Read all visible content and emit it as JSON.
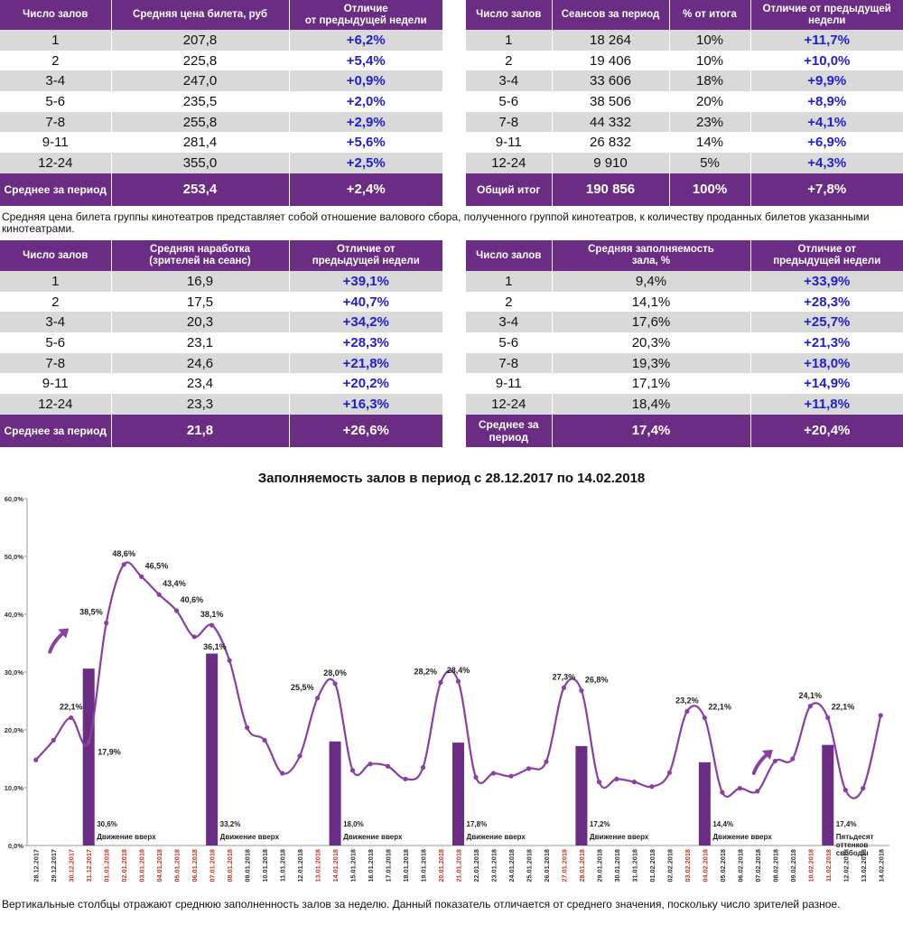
{
  "price_table": {
    "headers": [
      "Число залов",
      "Средняя цена билета, руб",
      "Отличие\nот предыдущей недели"
    ],
    "rows": [
      [
        "1",
        "207,8",
        "+6,2%"
      ],
      [
        "2",
        "225,8",
        "+5,4%"
      ],
      [
        "3-4",
        "247,0",
        "+0,9%"
      ],
      [
        "5-6",
        "235,5",
        "+2,0%"
      ],
      [
        "7-8",
        "255,8",
        "+2,9%"
      ],
      [
        "9-11",
        "281,4",
        "+5,6%"
      ],
      [
        "12-24",
        "355,0",
        "+2,5%"
      ]
    ],
    "total": [
      "Среднее за период",
      "253,4",
      "+2,4%"
    ]
  },
  "sessions_table": {
    "headers": [
      "Число залов",
      "Сеансов за период",
      "% от итога",
      "Отличие от предыдущей недели"
    ],
    "rows": [
      [
        "1",
        "18 264",
        "10%",
        "+11,7%"
      ],
      [
        "2",
        "19 406",
        "10%",
        "+10,0%"
      ],
      [
        "3-4",
        "33 606",
        "18%",
        "+9,9%"
      ],
      [
        "5-6",
        "38 506",
        "20%",
        "+8,9%"
      ],
      [
        "7-8",
        "44 332",
        "23%",
        "+4,1%"
      ],
      [
        "9-11",
        "26 832",
        "14%",
        "+6,9%"
      ],
      [
        "12-24",
        "9 910",
        "5%",
        "+4,3%"
      ]
    ],
    "total": [
      "Общий итог",
      "190 856",
      "100%",
      "+7,8%"
    ]
  },
  "note_price": "Средняя цена билета группы кинотеатров представляет собой отношение валового сбора, полученного группой кинотеатров, к количеству проданных билетов указанными кинотеатрами.",
  "audience_table": {
    "headers": [
      "Число залов",
      "Средняя наработка\n(зрителей на сеанс)",
      "Отличие от\nпредыдущей недели"
    ],
    "rows": [
      [
        "1",
        "16,9",
        "+39,1%"
      ],
      [
        "2",
        "17,5",
        "+40,7%"
      ],
      [
        "3-4",
        "20,3",
        "+34,2%"
      ],
      [
        "5-6",
        "23,1",
        "+28,3%"
      ],
      [
        "7-8",
        "24,6",
        "+21,8%"
      ],
      [
        "9-11",
        "23,4",
        "+20,2%"
      ],
      [
        "12-24",
        "23,3",
        "+16,3%"
      ]
    ],
    "total": [
      "Среднее за период",
      "21,8",
      "+26,6%"
    ]
  },
  "occupancy_table": {
    "headers": [
      "Число залов",
      "Средняя заполняемость\nзала, %",
      "Отличие от\nпредыдущей недели"
    ],
    "rows": [
      [
        "1",
        "9,4%",
        "+33,9%"
      ],
      [
        "2",
        "14,1%",
        "+28,3%"
      ],
      [
        "3-4",
        "17,6%",
        "+25,7%"
      ],
      [
        "5-6",
        "20,3%",
        "+21,3%"
      ],
      [
        "7-8",
        "19,3%",
        "+18,0%"
      ],
      [
        "9-11",
        "17,1%",
        "+14,9%"
      ],
      [
        "12-24",
        "18,4%",
        "+11,8%"
      ]
    ],
    "total": [
      "Среднее за период",
      "17,4%",
      "+20,4%"
    ]
  },
  "note_chart": "Вертикальные столбцы отражают среднюю заполненность залов за неделю. Данный показатель отличается от среднего значения, поскольку число зрителей разное.",
  "colors": {
    "accent": "#6b2d84",
    "positive": "#1f1fd0",
    "band": "#d9d9d9",
    "weekend": "#c0392b"
  },
  "chart_data": {
    "type": "line",
    "title": "Заполняемость залов в период с 28.12.2017 по 14.02.2018",
    "ylim": [
      0,
      60
    ],
    "yticks": [
      "0,0%",
      "10,0%",
      "20,0%",
      "30,0%",
      "40,0%",
      "50,0%",
      "60,0%"
    ],
    "x": [
      "28.12.2017",
      "29.12.2017",
      "30.12.2017",
      "31.12.2017",
      "01.01.2018",
      "02.01.2018",
      "03.01.2018",
      "04.01.2018",
      "05.01.2018",
      "06.01.2018",
      "07.01.2018",
      "08.01.2018",
      "09.01.2018",
      "10.01.2018",
      "11.01.2018",
      "12.01.2018",
      "13.01.2018",
      "14.01.2018",
      "15.01.2018",
      "16.01.2018",
      "17.01.2018",
      "18.01.2018",
      "19.01.2018",
      "20.01.2018",
      "21.01.2018",
      "22.01.2018",
      "23.01.2018",
      "24.01.2018",
      "25.01.2018",
      "26.01.2018",
      "27.01.2018",
      "28.01.2018",
      "29.01.2018",
      "30.01.2018",
      "31.01.2018",
      "01.02.2018",
      "02.02.2018",
      "03.02.2018",
      "04.02.2018",
      "05.02.2018",
      "06.02.2018",
      "07.02.2018",
      "08.02.2018",
      "09.02.2018",
      "10.02.2018",
      "11.02.2018",
      "12.02.2018",
      "13.02.2018",
      "14.02.2018"
    ],
    "weekend": [
      2,
      3,
      4,
      5,
      6,
      7,
      8,
      9,
      10,
      11,
      16,
      17,
      23,
      24,
      30,
      31,
      37,
      38,
      44,
      45
    ],
    "values": [
      14.8,
      18.2,
      22.1,
      17.9,
      38.5,
      48.6,
      46.5,
      43.4,
      40.6,
      36.1,
      38.1,
      32.0,
      20.4,
      18.2,
      12.5,
      15.5,
      25.5,
      28.0,
      13.0,
      14.1,
      13.7,
      11.5,
      13.5,
      28.2,
      28.4,
      11.8,
      12.5,
      12.0,
      13.3,
      14.5,
      27.3,
      26.8,
      11.0,
      11.5,
      11.0,
      10.2,
      12.6,
      23.2,
      22.1,
      9.2,
      9.9,
      9.4,
      14.6,
      15.0,
      24.1,
      22.1,
      9.6,
      9.9,
      22.5
    ],
    "point_labels": [
      {
        "i": 2,
        "text": "22,1%"
      },
      {
        "i": 3,
        "text": "17,9%"
      },
      {
        "i": 4,
        "text": "38,5%"
      },
      {
        "i": 5,
        "text": "48,6%"
      },
      {
        "i": 6,
        "text": "46,5%"
      },
      {
        "i": 7,
        "text": "43,4%"
      },
      {
        "i": 8,
        "text": "40,6%"
      },
      {
        "i": 9,
        "text": "36,1%"
      },
      {
        "i": 10,
        "text": "38,1%"
      },
      {
        "i": 16,
        "text": "25,5%"
      },
      {
        "i": 17,
        "text": "28,0%"
      },
      {
        "i": 23,
        "text": "28,2%"
      },
      {
        "i": 24,
        "text": "28,4%"
      },
      {
        "i": 30,
        "text": "27,3%"
      },
      {
        "i": 31,
        "text": "26,8%"
      },
      {
        "i": 37,
        "text": "23,2%"
      },
      {
        "i": 38,
        "text": "22,1%"
      },
      {
        "i": 44,
        "text": "24,1%"
      },
      {
        "i": 45,
        "text": "22,1%"
      }
    ],
    "weekly_bars": [
      {
        "i": 3,
        "value": 30.6,
        "label": "30,6%",
        "caption": "Движение вверх"
      },
      {
        "i": 10,
        "value": 33.2,
        "label": "33,2%",
        "caption": "Движение вверх"
      },
      {
        "i": 17,
        "value": 18.0,
        "label": "18,0%",
        "caption": "Движение вверх"
      },
      {
        "i": 24,
        "value": 17.8,
        "label": "17,8%",
        "caption": "Движение вверх"
      },
      {
        "i": 31,
        "value": 17.2,
        "label": "17,2%",
        "caption": "Движение вверх"
      },
      {
        "i": 38,
        "value": 14.4,
        "label": "14,4%",
        "caption": "Движение вверх"
      },
      {
        "i": 45,
        "value": 17.4,
        "label": "17,4%",
        "caption": "Пятьдесят оттенков свободы"
      }
    ],
    "arrows": [
      {
        "i": 1,
        "value": 36
      },
      {
        "i": 41,
        "value": 15
      }
    ]
  }
}
